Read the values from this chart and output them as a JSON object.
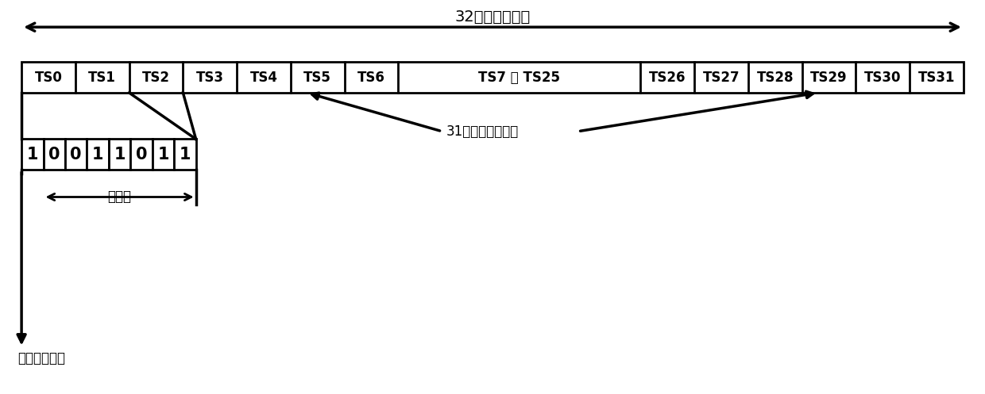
{
  "title_arrow_text": "32时隙组成一帧",
  "ts_labels": [
    "TS0",
    "TS1",
    "TS2",
    "TS3",
    "TS4",
    "TS5",
    "TS6",
    "TS7 ～ TS25",
    "TS26",
    "TS27",
    "TS28",
    "TS29",
    "TS30",
    "TS31"
  ],
  "ts_widths": [
    1,
    1,
    1,
    1,
    1,
    1,
    1,
    4.5,
    1,
    1,
    1,
    1,
    1,
    1
  ],
  "bits": [
    "1",
    "0",
    "0",
    "1",
    "1",
    "0",
    "1",
    "1"
  ],
  "sync_code_label": "同步码",
  "user_ts_label": "31个用户数据时隙",
  "intl_label": "国际通信保留",
  "bg_color": "#ffffff",
  "box_color": "#ffffff",
  "line_color": "#000000",
  "text_color": "#000000",
  "font_size": 12,
  "bit_font_size": 15,
  "title_font_size": 14
}
